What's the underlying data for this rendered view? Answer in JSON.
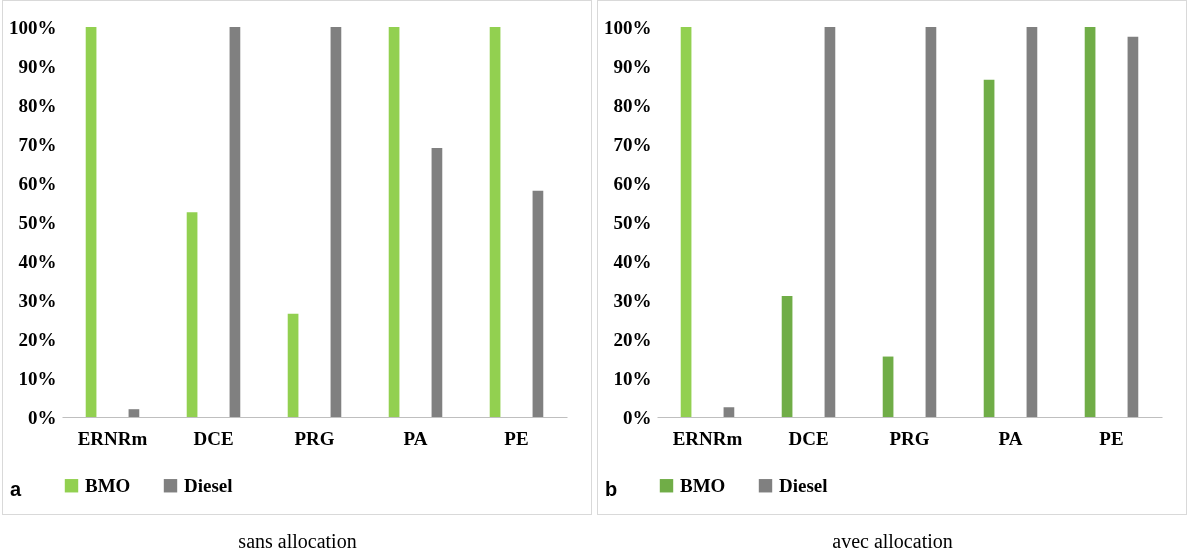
{
  "chart_data": [
    {
      "type": "bar",
      "categories": [
        "ERNRm",
        "DCE",
        "PRG",
        "PA",
        "PE"
      ],
      "ylim": [
        0,
        100
      ],
      "yticks": [
        {
          "value": 0,
          "label": "0%"
        },
        {
          "value": 10,
          "label": "10%"
        },
        {
          "value": 20,
          "label": "20%"
        },
        {
          "value": 30,
          "label": "30%"
        },
        {
          "value": 40,
          "label": "40%"
        },
        {
          "value": 50,
          "label": "50%"
        },
        {
          "value": 60,
          "label": "60%"
        },
        {
          "value": 70,
          "label": "70%"
        },
        {
          "value": 80,
          "label": "80%"
        },
        {
          "value": 90,
          "label": "90%"
        },
        {
          "value": 100,
          "label": "100%"
        }
      ],
      "legend": "bottom",
      "annotations": [
        "a",
        "sans allocation"
      ],
      "series": [
        {
          "name": "BMO",
          "color": "#92d050",
          "values": [
            100,
            52.5,
            26.5,
            100,
            100
          ]
        },
        {
          "name": "Diesel",
          "color": "#808080",
          "values": [
            2,
            100,
            100,
            69,
            58
          ]
        }
      ]
    },
    {
      "type": "bar",
      "categories": [
        "ERNRm",
        "DCE",
        "PRG",
        "PA",
        "PE"
      ],
      "ylim": [
        0,
        100
      ],
      "yticks": [
        {
          "value": 0,
          "label": "0%"
        },
        {
          "value": 10,
          "label": "10%"
        },
        {
          "value": 20,
          "label": "20%"
        },
        {
          "value": 30,
          "label": "30%"
        },
        {
          "value": 40,
          "label": "40%"
        },
        {
          "value": 50,
          "label": "50%"
        },
        {
          "value": 60,
          "label": "60%"
        },
        {
          "value": 70,
          "label": "70%"
        },
        {
          "value": 80,
          "label": "80%"
        },
        {
          "value": 90,
          "label": "90%"
        },
        {
          "value": 100,
          "label": "100%"
        }
      ],
      "legend": "bottom",
      "annotations": [
        "b",
        "avec allocation"
      ],
      "series": [
        {
          "name": "BMO",
          "color": "#70ad47",
          "colors": [
            "#92d050",
            "#70ad47",
            "#70ad47",
            "#70ad47",
            "#70ad47"
          ],
          "values": [
            100,
            31,
            15.5,
            86.5,
            100
          ]
        },
        {
          "name": "Diesel",
          "color": "#808080",
          "values": [
            2.5,
            100,
            100,
            100,
            97.5
          ]
        }
      ]
    }
  ]
}
